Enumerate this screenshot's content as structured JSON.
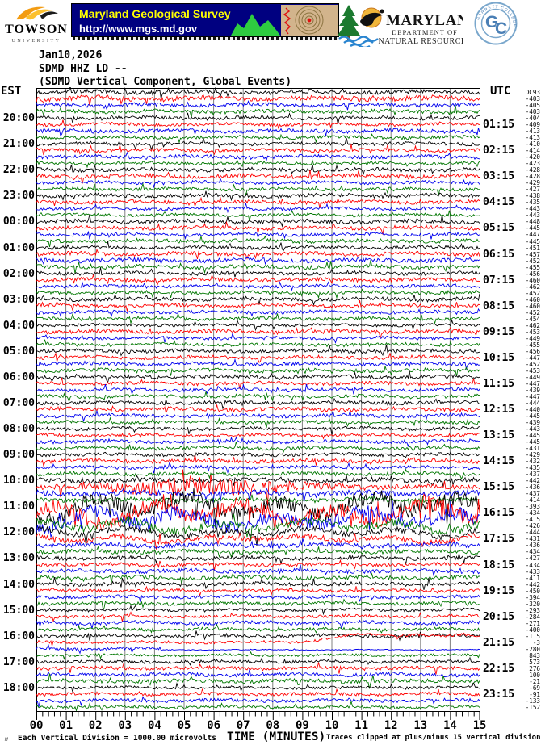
{
  "header": {
    "towson": {
      "name": "TOWSON",
      "subtitle": "UNIVERSITY"
    },
    "mgs": {
      "title": "Maryland Geological Survey",
      "url": "http://www.mgs.md.gov"
    },
    "dnr": {
      "name": "MARYLAND",
      "dept1": "DEPARTMENT OF",
      "dept2": "NATURAL RESOURCES"
    },
    "garrett": {
      "ring_text": "GARRETT COLLEGE",
      "letter_g": "G",
      "letter_c": "C"
    }
  },
  "title": {
    "date": "Jan10,2026",
    "station_line": "SDMD HHZ LD --",
    "component_line": "(SDMD Vertical Component, Global Events)"
  },
  "footer": {
    "corner_mark": "M",
    "scale_note": "Each Vertical Division = 1000.00 microvolts",
    "clip_note": "Traces clipped at plus/minus 15 vertical divisions"
  },
  "chart_data": {
    "type": "helicorder-seismogram",
    "title": "SDMD HHZ LD -- (SDMD Vertical Component, Global Events)",
    "date": "Jan10,2026",
    "rows": 96,
    "minutes_per_row": 15,
    "trace_color_cycle": [
      "#000000",
      "#ff0000",
      "#0000ee",
      "#007700"
    ],
    "grid_color": "#808080",
    "left_axis": {
      "header": "EST",
      "labels": [
        "20:00",
        "21:00",
        "22:00",
        "23:00",
        "00:00",
        "01:00",
        "02:00",
        "03:00",
        "04:00",
        "05:00",
        "06:00",
        "07:00",
        "08:00",
        "09:00",
        "10:00",
        "11:00",
        "12:00",
        "13:00",
        "14:00",
        "15:00",
        "16:00",
        "17:00",
        "18:00"
      ]
    },
    "right_axis": {
      "header": "UTC",
      "labels": [
        "01:15",
        "02:15",
        "03:15",
        "04:15",
        "05:15",
        "06:15",
        "07:15",
        "08:15",
        "09:15",
        "10:15",
        "11:15",
        "12:15",
        "13:15",
        "14:15",
        "15:15",
        "16:15",
        "17:15",
        "18:15",
        "19:15",
        "20:15",
        "21:15",
        "22:15",
        "23:15"
      ]
    },
    "dc_offsets": [
      "DC93",
      "-403",
      "-405",
      "-403",
      "-404",
      "-409",
      "-413",
      "-413",
      "-410",
      "-414",
      "-420",
      "-423",
      "-428",
      "-428",
      "-429",
      "-427",
      "-438",
      "-435",
      "-443",
      "-443",
      "-448",
      "-445",
      "-447",
      "-445",
      "-451",
      "-457",
      "-452",
      "-455",
      "-456",
      "-460",
      "-462",
      "-452",
      "-460",
      "-460",
      "-452",
      "-454",
      "-462",
      "-453",
      "-449",
      "-455",
      "-456",
      "-447",
      "-452",
      "-453",
      "-449",
      "-447",
      "-439",
      "-447",
      "-444",
      "-440",
      "-445",
      "-439",
      "-443",
      "-445",
      "-445",
      "-431",
      "-429",
      "-432",
      "-435",
      "-437",
      "-442",
      "-436",
      "-437",
      "-414",
      "-393",
      "-434",
      "-415",
      "-426",
      "-444",
      "-431",
      "-436",
      "-434",
      "-427",
      "-434",
      "-433",
      "-411",
      "-442",
      "-450",
      "-394",
      "-320",
      "-293",
      "-284",
      "-271",
      "-400",
      "-115",
      "-3",
      "-280",
      "843",
      "573",
      "276",
      "100",
      "-21",
      "-69",
      "-91",
      "-133",
      "-152"
    ],
    "x_axis": {
      "title": "TIME (MINUTES)",
      "labels": [
        "00",
        "01",
        "02",
        "03",
        "04",
        "05",
        "06",
        "07",
        "08",
        "09",
        "10",
        "11",
        "12",
        "13",
        "14",
        "15"
      ],
      "minor_ticks_per_minute": 5
    },
    "row_amplitude_overrides": {
      "0": 1.4,
      "1": 1.8,
      "2": 1.3,
      "3": 1.3,
      "20": 1.4,
      "21": 1.3,
      "60": 1.6,
      "61": 3.4,
      "62": 1.8,
      "63": 1.5,
      "64": 5.6,
      "65": 5.2,
      "66": 4.6,
      "67": 2.8,
      "68": 2.2,
      "69": 1.8,
      "70": 1.6,
      "71": 1.4,
      "72": 1.3,
      "73": 1.2,
      "84": 1.2,
      "87": 0.9
    },
    "drift_row": 85,
    "flatten_row": 86,
    "visible_features": [
      "High-amplitude red burst on the 15:15 UTC (10:15 EST) line",
      "Large slow oscillations (global event) across 16:00-17:30 UTC lines",
      "Red trace baseline drifts upward near end of 21:15 UTC (16:15 EST) line",
      "DC offsets jump from ~-450 to 843/573/276 around 22:15 UTC"
    ]
  }
}
